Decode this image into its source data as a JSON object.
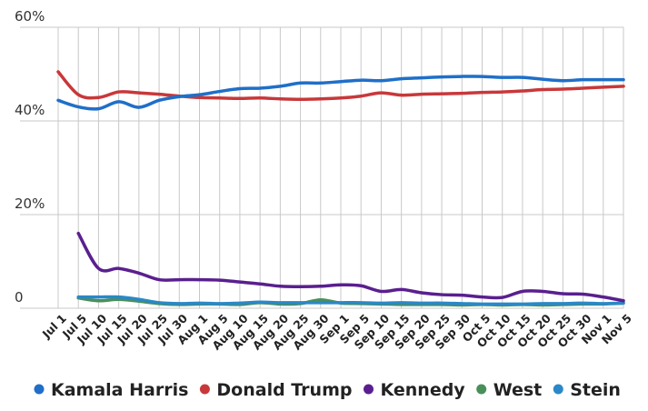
{
  "chart_data": {
    "type": "line",
    "categories": [
      "Jul 1",
      "Jul 5",
      "Jul 10",
      "Jul 15",
      "Jul 20",
      "Jul 25",
      "Jul 30",
      "Aug 1",
      "Aug 5",
      "Aug 10",
      "Aug 15",
      "Aug 20",
      "Aug 25",
      "Aug 30",
      "Sep 1",
      "Sep 5",
      "Sep 10",
      "Sep 15",
      "Sep 20",
      "Sep 25",
      "Sep 30",
      "Oct 5",
      "Oct 10",
      "Oct 15",
      "Oct 20",
      "Oct 25",
      "Oct 30",
      "Nov 1",
      "Nov 5"
    ],
    "y_ticks": [
      {
        "value": 0,
        "label": "0"
      },
      {
        "value": 20,
        "label": "20%"
      },
      {
        "value": 40,
        "label": "40%"
      },
      {
        "value": 60,
        "label": "60%"
      }
    ],
    "ylim": [
      0,
      60
    ],
    "grid": true,
    "legend_position": "bottom",
    "series": [
      {
        "name": "Kamala Harris",
        "color": "#1f6fc8",
        "values": [
          44.4,
          43.0,
          42.6,
          44.1,
          42.9,
          44.4,
          45.2,
          45.6,
          46.3,
          46.9,
          47.0,
          47.4,
          48.1,
          48.1,
          48.4,
          48.7,
          48.6,
          49.0,
          49.2,
          49.4,
          49.5,
          49.5,
          49.3,
          49.3,
          48.9,
          48.6,
          48.8,
          48.8,
          48.8
        ]
      },
      {
        "name": "Donald Trump",
        "color": "#c8383a",
        "values": [
          50.5,
          45.6,
          45.0,
          46.2,
          46.0,
          45.7,
          45.3,
          45.0,
          44.9,
          44.8,
          44.9,
          44.7,
          44.6,
          44.7,
          44.9,
          45.3,
          46.0,
          45.5,
          45.7,
          45.8,
          45.9,
          46.1,
          46.2,
          46.4,
          46.7,
          46.8,
          47.0,
          47.2,
          47.4
        ]
      },
      {
        "name": "Kennedy",
        "color": "#5a1f8f",
        "values": [
          null,
          16.0,
          8.5,
          8.5,
          7.5,
          6.1,
          6.1,
          6.1,
          6.0,
          5.6,
          5.2,
          4.7,
          4.6,
          4.7,
          5.0,
          4.8,
          3.6,
          4.0,
          3.3,
          2.9,
          2.8,
          2.4,
          2.3,
          3.6,
          3.6,
          3.1,
          3.0,
          2.4,
          1.6
        ]
      },
      {
        "name": "West",
        "color": "#4a8f5a",
        "values": [
          null,
          2.2,
          1.6,
          1.9,
          1.5,
          1.0,
          0.8,
          0.9,
          0.9,
          0.8,
          1.2,
          0.9,
          1.0,
          1.8,
          1.1,
          1.0,
          0.9,
          0.8,
          0.8,
          0.8,
          0.7,
          0.8,
          0.7,
          0.8,
          0.7,
          0.8,
          0.9,
          0.9,
          1.1
        ]
      },
      {
        "name": "Stein",
        "color": "#2a88c8",
        "values": [
          null,
          2.4,
          2.4,
          2.4,
          1.9,
          1.2,
          1.0,
          1.1,
          1.0,
          1.1,
          1.3,
          1.2,
          1.2,
          1.2,
          1.2,
          1.2,
          1.1,
          1.2,
          1.1,
          1.1,
          1.0,
          0.9,
          0.9,
          0.9,
          1.0,
          1.0,
          1.1,
          1.0,
          1.1
        ]
      }
    ]
  }
}
